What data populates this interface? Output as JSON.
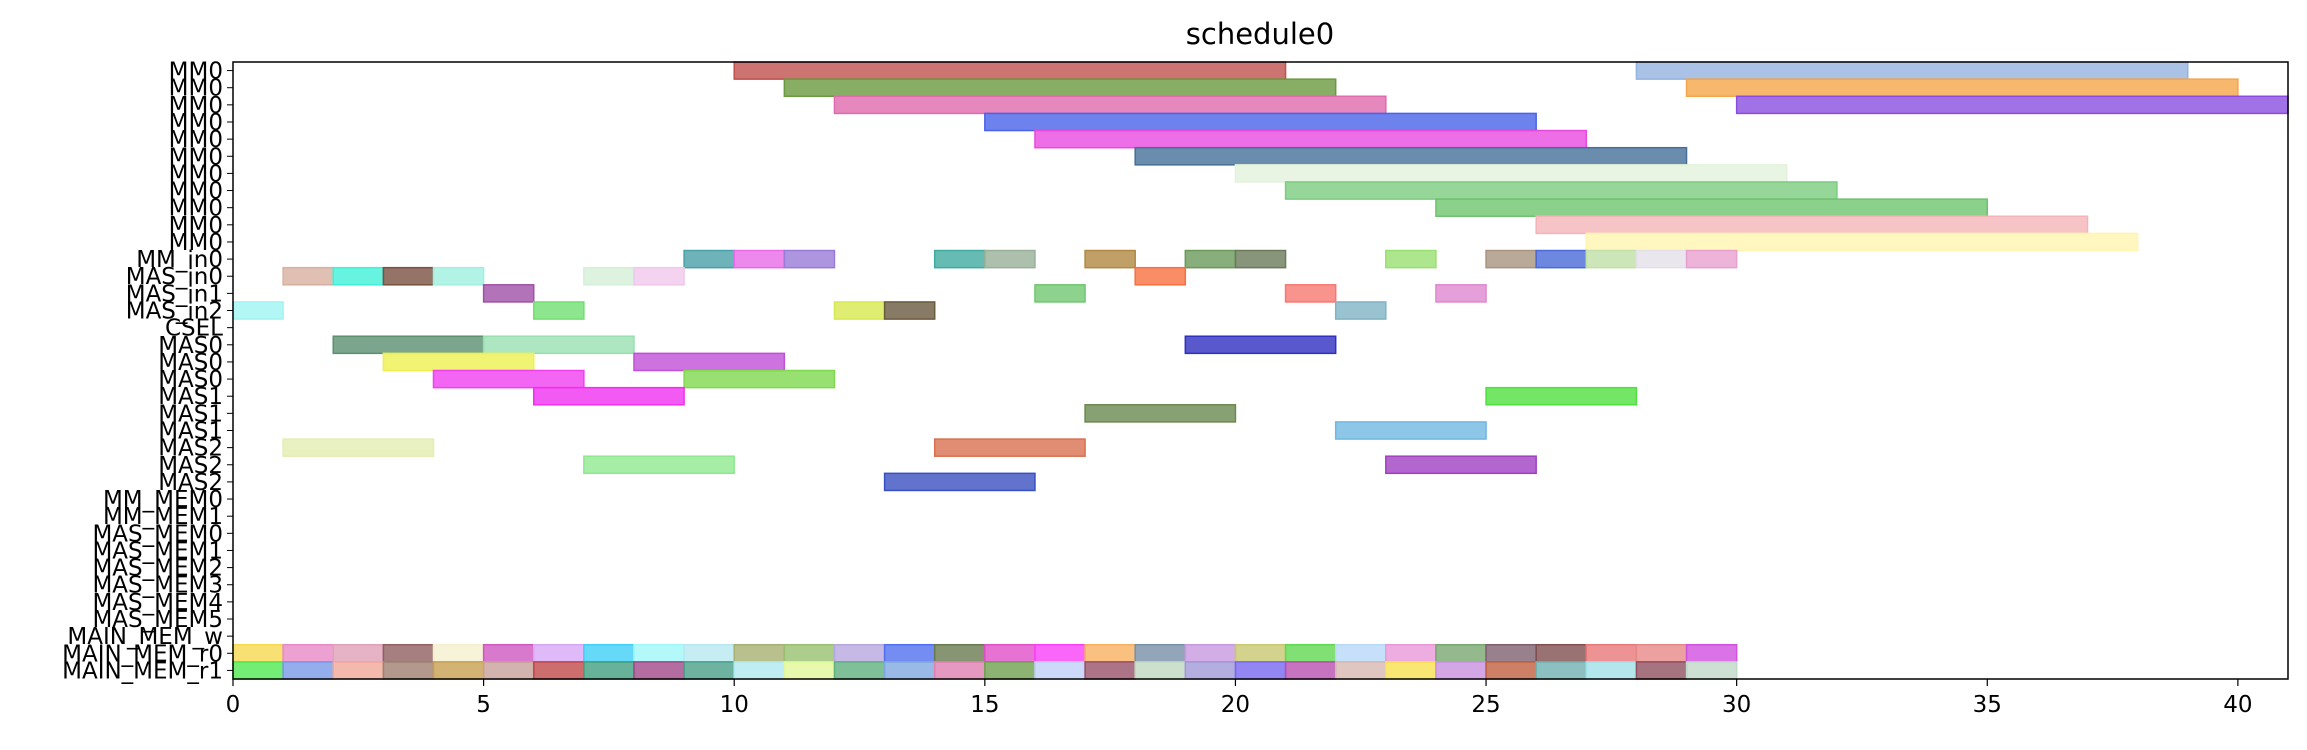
{
  "chart_data": {
    "type": "gantt",
    "title": "schedule0",
    "xlabel": "",
    "ylabel": "",
    "xlim": [
      0,
      41
    ],
    "x_ticks": [
      0,
      5,
      10,
      15,
      20,
      25,
      30,
      35,
      40
    ],
    "grid": false,
    "rows": [
      "MM0",
      "MM0",
      "MM0",
      "MM0",
      "MM0",
      "MM0",
      "MM0",
      "MM0",
      "MM0",
      "MM0",
      "MM0",
      "MM_in0",
      "MAS_in0",
      "MAS_in1",
      "MAS_in2",
      "CSEL",
      "MAS0",
      "MAS0",
      "MAS0",
      "MAS1",
      "MAS1",
      "MAS1",
      "MAS2",
      "MAS2",
      "MAS2",
      "MM_MEM0",
      "MM_MEM1",
      "MAS_MEM0",
      "MAS_MEM1",
      "MAS_MEM2",
      "MAS_MEM3",
      "MAS_MEM4",
      "MAS_MEM5",
      "MAIN_MEM_w",
      "MAIN_MEM_r0",
      "MAIN_MEM_r1"
    ],
    "bars": [
      {
        "row": 0,
        "start": 10,
        "end": 21,
        "color": "#c0504d"
      },
      {
        "row": 0,
        "start": 28,
        "end": 39,
        "color": "#95b3e0"
      },
      {
        "row": 1,
        "start": 11,
        "end": 22,
        "color": "#6a9a40"
      },
      {
        "row": 1,
        "start": 29,
        "end": 40,
        "color": "#f5a64a"
      },
      {
        "row": 2,
        "start": 12,
        "end": 23,
        "color": "#e06aae"
      },
      {
        "row": 2,
        "start": 30,
        "end": 41,
        "color": "#8a4de0"
      },
      {
        "row": 3,
        "start": 15,
        "end": 26,
        "color": "#4a63e8"
      },
      {
        "row": 4,
        "start": 16,
        "end": 27,
        "color": "#e84ae0"
      },
      {
        "row": 5,
        "start": 18,
        "end": 29,
        "color": "#456f98"
      },
      {
        "row": 6,
        "start": 20,
        "end": 31,
        "color": "#e4f2dc"
      },
      {
        "row": 7,
        "start": 21,
        "end": 32,
        "color": "#7ccc80"
      },
      {
        "row": 8,
        "start": 24,
        "end": 35,
        "color": "#6ec46e"
      },
      {
        "row": 9,
        "start": 26,
        "end": 37,
        "color": "#f4b4b8"
      },
      {
        "row": 10,
        "start": 27,
        "end": 38,
        "color": "#fff4b0"
      },
      {
        "row": 11,
        "start": 9,
        "end": 10,
        "color": "#4aa0a8"
      },
      {
        "row": 11,
        "start": 10,
        "end": 11,
        "color": "#e86ae8"
      },
      {
        "row": 11,
        "start": 11,
        "end": 12,
        "color": "#9a7ad8"
      },
      {
        "row": 11,
        "start": 14,
        "end": 15,
        "color": "#40aaa0"
      },
      {
        "row": 11,
        "start": 15,
        "end": 16,
        "color": "#98b098"
      },
      {
        "row": 11,
        "start": 17,
        "end": 18,
        "color": "#b08840"
      },
      {
        "row": 11,
        "start": 19,
        "end": 20,
        "color": "#6a9a5a"
      },
      {
        "row": 11,
        "start": 20,
        "end": 21,
        "color": "#6a7a5a"
      },
      {
        "row": 11,
        "start": 23,
        "end": 24,
        "color": "#98e070"
      },
      {
        "row": 11,
        "start": 25,
        "end": 26,
        "color": "#a89480"
      },
      {
        "row": 11,
        "start": 26,
        "end": 27,
        "color": "#4a6ad8"
      },
      {
        "row": 11,
        "start": 27,
        "end": 28,
        "color": "#c0e0a8"
      },
      {
        "row": 11,
        "start": 28,
        "end": 29,
        "color": "#e4e0e8"
      },
      {
        "row": 11,
        "start": 29,
        "end": 30,
        "color": "#e8a0d0"
      },
      {
        "row": 12,
        "start": 1,
        "end": 2,
        "color": "#d8b0a0"
      },
      {
        "row": 12,
        "start": 2,
        "end": 3,
        "color": "#40f0d8"
      },
      {
        "row": 12,
        "start": 3,
        "end": 4,
        "color": "#7a5040"
      },
      {
        "row": 12,
        "start": 4,
        "end": 5,
        "color": "#a0f0e0"
      },
      {
        "row": 12,
        "start": 7,
        "end": 8,
        "color": "#d4f0d8"
      },
      {
        "row": 12,
        "start": 8,
        "end": 9,
        "color": "#f0c8ec"
      },
      {
        "row": 12,
        "start": 18,
        "end": 19,
        "color": "#f87040"
      },
      {
        "row": 13,
        "start": 5,
        "end": 6,
        "color": "#a050a8"
      },
      {
        "row": 13,
        "start": 16,
        "end": 17,
        "color": "#70c870"
      },
      {
        "row": 13,
        "start": 21,
        "end": 22,
        "color": "#f87870"
      },
      {
        "row": 13,
        "start": 24,
        "end": 25,
        "color": "#e088d0"
      },
      {
        "row": 14,
        "start": 0,
        "end": 1,
        "color": "#a0f4f4"
      },
      {
        "row": 14,
        "start": 6,
        "end": 7,
        "color": "#70e070"
      },
      {
        "row": 14,
        "start": 12,
        "end": 13,
        "color": "#d8e850"
      },
      {
        "row": 14,
        "start": 13,
        "end": 14,
        "color": "#6a5a40"
      },
      {
        "row": 14,
        "start": 22,
        "end": 23,
        "color": "#80b4c4"
      },
      {
        "row": 16,
        "start": 2,
        "end": 5,
        "color": "#5a9070"
      },
      {
        "row": 16,
        "start": 5,
        "end": 8,
        "color": "#98e0b0"
      },
      {
        "row": 16,
        "start": 19,
        "end": 22,
        "color": "#3030c0"
      },
      {
        "row": 17,
        "start": 3,
        "end": 6,
        "color": "#eef050"
      },
      {
        "row": 17,
        "start": 8,
        "end": 11,
        "color": "#c050d8"
      },
      {
        "row": 18,
        "start": 4,
        "end": 7,
        "color": "#f040f0"
      },
      {
        "row": 18,
        "start": 9,
        "end": 12,
        "color": "#80d850"
      },
      {
        "row": 19,
        "start": 6,
        "end": 9,
        "color": "#f030f0"
      },
      {
        "row": 19,
        "start": 25,
        "end": 28,
        "color": "#50e040"
      },
      {
        "row": 20,
        "start": 17,
        "end": 20,
        "color": "#6a8a50"
      },
      {
        "row": 21,
        "start": 22,
        "end": 25,
        "color": "#70b8e0"
      },
      {
        "row": 22,
        "start": 1,
        "end": 4,
        "color": "#e4eeb0"
      },
      {
        "row": 22,
        "start": 14,
        "end": 17,
        "color": "#d87050"
      },
      {
        "row": 23,
        "start": 7,
        "end": 10,
        "color": "#90e890"
      },
      {
        "row": 23,
        "start": 23,
        "end": 26,
        "color": "#a040c0"
      },
      {
        "row": 24,
        "start": 13,
        "end": 16,
        "color": "#3a50c0"
      },
      {
        "row": 34,
        "start": 0,
        "end": 1,
        "color": "#f8d850"
      },
      {
        "row": 34,
        "start": 1,
        "end": 2,
        "color": "#e88ac8"
      },
      {
        "row": 34,
        "start": 2,
        "end": 3,
        "color": "#e0a0b8"
      },
      {
        "row": 34,
        "start": 3,
        "end": 4,
        "color": "#906060"
      },
      {
        "row": 34,
        "start": 4,
        "end": 5,
        "color": "#f4f0d0"
      },
      {
        "row": 34,
        "start": 5,
        "end": 6,
        "color": "#d058c0"
      },
      {
        "row": 34,
        "start": 6,
        "end": 7,
        "color": "#d8a8f8"
      },
      {
        "row": 34,
        "start": 7,
        "end": 8,
        "color": "#40d0f8"
      },
      {
        "row": 34,
        "start": 8,
        "end": 9,
        "color": "#a0f8f8"
      },
      {
        "row": 34,
        "start": 9,
        "end": 10,
        "color": "#b8e8f0"
      },
      {
        "row": 34,
        "start": 10,
        "end": 11,
        "color": "#a8b070"
      },
      {
        "row": 34,
        "start": 11,
        "end": 12,
        "color": "#98c070"
      },
      {
        "row": 34,
        "start": 12,
        "end": 13,
        "color": "#b8a8e0"
      },
      {
        "row": 34,
        "start": 13,
        "end": 14,
        "color": "#5070f0"
      },
      {
        "row": 34,
        "start": 14,
        "end": 15,
        "color": "#6a7a50"
      },
      {
        "row": 34,
        "start": 15,
        "end": 16,
        "color": "#e050c8"
      },
      {
        "row": 34,
        "start": 16,
        "end": 17,
        "color": "#f840f8"
      },
      {
        "row": 34,
        "start": 17,
        "end": 18,
        "color": "#f8b060"
      },
      {
        "row": 34,
        "start": 18,
        "end": 19,
        "color": "#7890a8"
      },
      {
        "row": 34,
        "start": 19,
        "end": 20,
        "color": "#c898e0"
      },
      {
        "row": 34,
        "start": 20,
        "end": 21,
        "color": "#c8c870"
      },
      {
        "row": 34,
        "start": 21,
        "end": 22,
        "color": "#60d850"
      },
      {
        "row": 34,
        "start": 22,
        "end": 23,
        "color": "#b8d8f8"
      },
      {
        "row": 34,
        "start": 23,
        "end": 24,
        "color": "#e898d8"
      },
      {
        "row": 34,
        "start": 24,
        "end": 25,
        "color": "#78a870"
      },
      {
        "row": 34,
        "start": 25,
        "end": 26,
        "color": "#806070"
      },
      {
        "row": 34,
        "start": 26,
        "end": 27,
        "color": "#805050"
      },
      {
        "row": 34,
        "start": 27,
        "end": 28,
        "color": "#e87878"
      },
      {
        "row": 34,
        "start": 28,
        "end": 29,
        "color": "#e88888"
      },
      {
        "row": 34,
        "start": 29,
        "end": 30,
        "color": "#d050e0"
      },
      {
        "row": 35,
        "start": 0,
        "end": 1,
        "color": "#50e850"
      },
      {
        "row": 35,
        "start": 1,
        "end": 2,
        "color": "#7898e8"
      },
      {
        "row": 35,
        "start": 2,
        "end": 3,
        "color": "#f0a898"
      },
      {
        "row": 35,
        "start": 3,
        "end": 4,
        "color": "#a08070"
      },
      {
        "row": 35,
        "start": 4,
        "end": 5,
        "color": "#c8a050"
      },
      {
        "row": 35,
        "start": 5,
        "end": 6,
        "color": "#c8a098"
      },
      {
        "row": 35,
        "start": 6,
        "end": 7,
        "color": "#c04848"
      },
      {
        "row": 35,
        "start": 7,
        "end": 8,
        "color": "#40a080"
      },
      {
        "row": 35,
        "start": 8,
        "end": 9,
        "color": "#a04888"
      },
      {
        "row": 35,
        "start": 9,
        "end": 10,
        "color": "#48a088"
      },
      {
        "row": 35,
        "start": 10,
        "end": 11,
        "color": "#b0e8f0"
      },
      {
        "row": 35,
        "start": 11,
        "end": 12,
        "color": "#e0f898"
      },
      {
        "row": 35,
        "start": 12,
        "end": 13,
        "color": "#60b080"
      },
      {
        "row": 35,
        "start": 13,
        "end": 14,
        "color": "#80a8e0"
      },
      {
        "row": 35,
        "start": 14,
        "end": 15,
        "color": "#e080b0"
      },
      {
        "row": 35,
        "start": 15,
        "end": 16,
        "color": "#70a050"
      },
      {
        "row": 35,
        "start": 16,
        "end": 17,
        "color": "#c0d0f8"
      },
      {
        "row": 35,
        "start": 17,
        "end": 18,
        "color": "#985068"
      },
      {
        "row": 35,
        "start": 18,
        "end": 19,
        "color": "#c0d8c0"
      },
      {
        "row": 35,
        "start": 19,
        "end": 20,
        "color": "#a098d8"
      },
      {
        "row": 35,
        "start": 20,
        "end": 21,
        "color": "#7868f0"
      },
      {
        "row": 35,
        "start": 21,
        "end": 22,
        "color": "#b850b0"
      },
      {
        "row": 35,
        "start": 22,
        "end": 23,
        "color": "#d8b8b0"
      },
      {
        "row": 35,
        "start": 23,
        "end": 24,
        "color": "#f8e050"
      },
      {
        "row": 35,
        "start": 24,
        "end": 25,
        "color": "#c890e0"
      },
      {
        "row": 35,
        "start": 25,
        "end": 26,
        "color": "#c06040"
      },
      {
        "row": 35,
        "start": 26,
        "end": 27,
        "color": "#70b0b0"
      },
      {
        "row": 35,
        "start": 27,
        "end": 28,
        "color": "#a0e0e8"
      },
      {
        "row": 35,
        "start": 28,
        "end": 29,
        "color": "#905060"
      },
      {
        "row": 35,
        "start": 29,
        "end": 30,
        "color": "#c0d8c8"
      }
    ]
  }
}
